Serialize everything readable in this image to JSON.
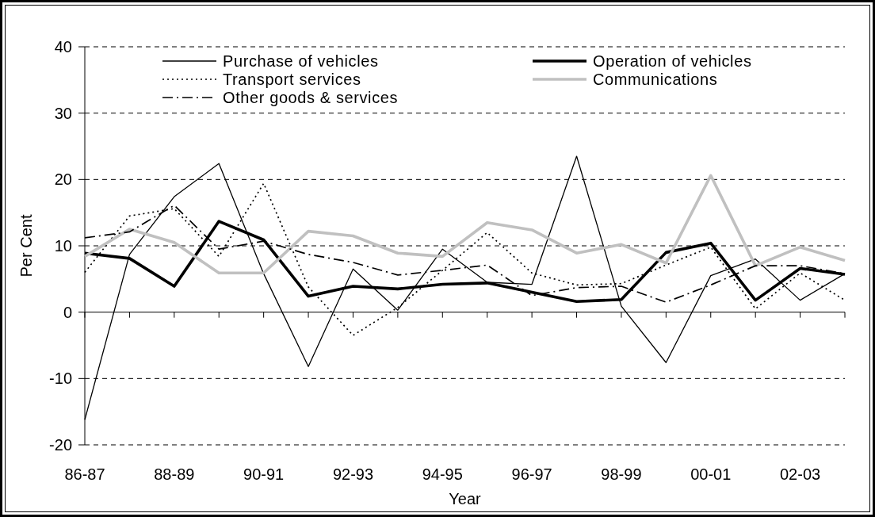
{
  "chart_data": {
    "type": "line",
    "xlabel": "Year",
    "ylabel": "Per Cent",
    "categories": [
      "86-87",
      null,
      "88-89",
      null,
      "90-91",
      null,
      "92-93",
      null,
      "94-95",
      null,
      "96-97",
      null,
      "98-99",
      null,
      "00-01",
      null,
      "02-03",
      null
    ],
    "ylim": [
      -20,
      40
    ],
    "yticks": [
      -20,
      -10,
      0,
      10,
      20,
      30,
      40
    ],
    "grid": "y",
    "legend": "top",
    "series": [
      {
        "name": "Purchase of vehicles",
        "color": "#000000",
        "line_style": "solid",
        "values": [
          -16.2,
          8.7,
          17.4,
          22.4,
          5.8,
          -8.2,
          6.5,
          0.3,
          9.5,
          4.5,
          4.2,
          23.5,
          0.9,
          -7.6,
          5.5,
          8.0,
          1.8,
          5.8
        ]
      },
      {
        "name": "Operation of vehicles",
        "color": "#000000",
        "line_style": "solid",
        "values": [
          8.9,
          8.1,
          3.9,
          13.7,
          10.9,
          2.4,
          3.9,
          3.5,
          4.2,
          4.4,
          3.0,
          1.6,
          1.9,
          9.0,
          10.4,
          1.8,
          6.6,
          5.7
        ]
      },
      {
        "name": "Transport services",
        "color": "#000000",
        "line_style": "dotted",
        "values": [
          6.0,
          14.5,
          15.6,
          8.4,
          19.4,
          3.8,
          -3.5,
          0.7,
          6.3,
          12.0,
          5.9,
          4.1,
          4.3,
          7.1,
          9.8,
          0.5,
          5.9,
          1.8
        ]
      },
      {
        "name": "Communications",
        "color": "#c0c0c0",
        "line_style": "solid",
        "values": [
          8.4,
          12.5,
          10.5,
          5.9,
          5.9,
          12.2,
          11.5,
          8.9,
          8.4,
          13.5,
          12.4,
          8.9,
          10.2,
          7.4,
          20.6,
          7.0,
          9.8,
          7.8
        ]
      },
      {
        "name": "Other goods & services",
        "color": "#000000",
        "line_style": "dashdot",
        "values": [
          11.2,
          12.1,
          16.1,
          9.5,
          10.7,
          8.7,
          7.5,
          5.6,
          6.3,
          7.1,
          2.5,
          3.7,
          3.9,
          1.5,
          4.1,
          7.0,
          7.0,
          5.8
        ]
      }
    ]
  }
}
